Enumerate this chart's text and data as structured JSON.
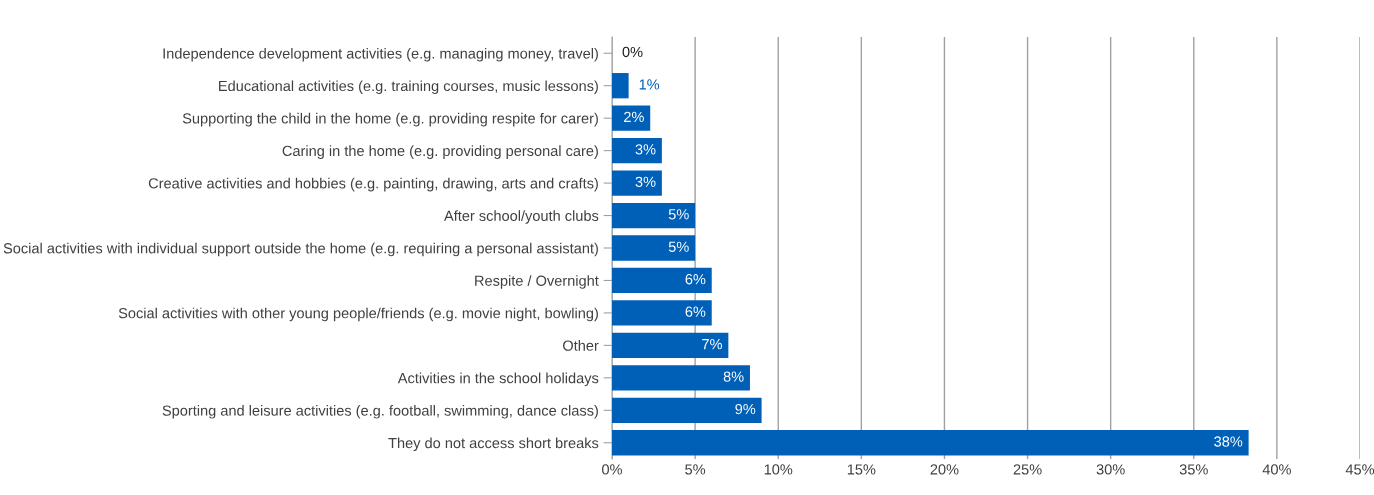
{
  "chart_data": {
    "type": "bar",
    "orientation": "horizontal",
    "categories": [
      "Independence development activities (e.g. managing money, travel)",
      "Educational activities (e.g. training courses, music lessons)",
      "Supporting the child in the home (e.g. providing respite for carer)",
      "Caring in the home (e.g. providing personal care)",
      "Creative activities and hobbies (e.g. painting, drawing, arts and crafts)",
      "After school/youth clubs",
      "Social activities with individual support outside the home (e.g. requiring a personal assistant)",
      "Respite / Overnight",
      "Social activities with other young people/friends (e.g. movie night, bowling)",
      "Other",
      "Activities in the school holidays",
      "Sporting and leisure activities (e.g. football, swimming, dance class)",
      "They do not access short breaks"
    ],
    "values": [
      0,
      1.0,
      2.3,
      3.0,
      3.0,
      5.0,
      5.0,
      6.0,
      6.0,
      7.0,
      8.3,
      9.0,
      38.3
    ],
    "value_labels": [
      "0%",
      "1%",
      "2%",
      "3%",
      "3%",
      "5%",
      "5%",
      "6%",
      "6%",
      "7%",
      "8%",
      "9%",
      "38%"
    ],
    "color": "#0060b8",
    "xlim": [
      0,
      45
    ],
    "xticks": [
      {
        "value": 0,
        "label": "0%"
      },
      {
        "value": 5,
        "label": "5%"
      },
      {
        "value": 10,
        "label": "10%"
      },
      {
        "value": 15,
        "label": "15%"
      },
      {
        "value": 20,
        "label": "20%"
      },
      {
        "value": 25,
        "label": "25%"
      },
      {
        "value": 30,
        "label": "30%"
      },
      {
        "value": 35,
        "label": "35%"
      },
      {
        "value": 40,
        "label": "40%"
      },
      {
        "value": 45,
        "label": "45%"
      }
    ],
    "grid": "x",
    "legend": false
  }
}
